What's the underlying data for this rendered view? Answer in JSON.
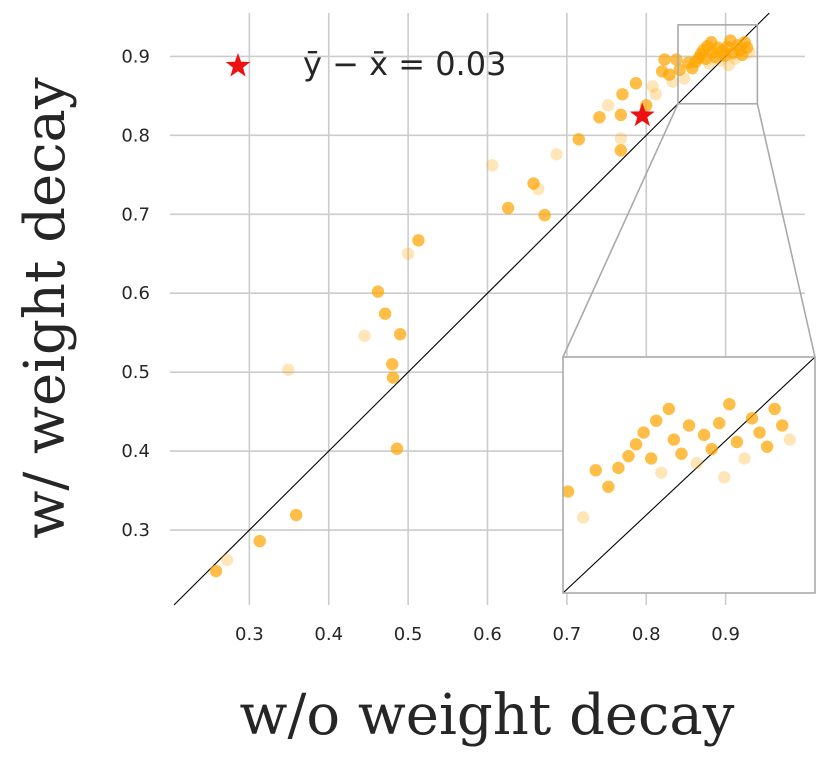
{
  "chart_data": {
    "type": "scatter",
    "xlabel": "w/o weight decay",
    "ylabel": "w/ weight decay",
    "xlim": [
      0.2,
      1.0
    ],
    "ylim": [
      0.205,
      0.955
    ],
    "xticks": [
      "0.3",
      "0.4",
      "0.5",
      "0.6",
      "0.7",
      "0.8",
      "0.9"
    ],
    "yticks": [
      "0.3",
      "0.4",
      "0.5",
      "0.6",
      "0.7",
      "0.8",
      "0.9"
    ],
    "grid": true,
    "point_color": "#ffa500",
    "marker_color": "#ee1111",
    "annotation": "ȳ − x̄ = 0.03",
    "mean_point": {
      "x": 0.795,
      "y": 0.825
    },
    "points": [
      {
        "x": 0.258,
        "y": 0.248,
        "strong": true
      },
      {
        "x": 0.272,
        "y": 0.262,
        "strong": false
      },
      {
        "x": 0.313,
        "y": 0.286,
        "strong": true
      },
      {
        "x": 0.349,
        "y": 0.503,
        "strong": false
      },
      {
        "x": 0.359,
        "y": 0.319,
        "strong": true
      },
      {
        "x": 0.445,
        "y": 0.546,
        "strong": false
      },
      {
        "x": 0.462,
        "y": 0.602,
        "strong": true
      },
      {
        "x": 0.471,
        "y": 0.574,
        "strong": true
      },
      {
        "x": 0.48,
        "y": 0.51,
        "strong": true
      },
      {
        "x": 0.481,
        "y": 0.493,
        "strong": true
      },
      {
        "x": 0.486,
        "y": 0.403,
        "strong": true
      },
      {
        "x": 0.49,
        "y": 0.548,
        "strong": true
      },
      {
        "x": 0.5,
        "y": 0.65,
        "strong": false
      },
      {
        "x": 0.513,
        "y": 0.667,
        "strong": true
      },
      {
        "x": 0.606,
        "y": 0.762,
        "strong": false
      },
      {
        "x": 0.626,
        "y": 0.708,
        "strong": true
      },
      {
        "x": 0.658,
        "y": 0.739,
        "strong": true
      },
      {
        "x": 0.664,
        "y": 0.732,
        "strong": false
      },
      {
        "x": 0.672,
        "y": 0.699,
        "strong": true
      },
      {
        "x": 0.687,
        "y": 0.776,
        "strong": false
      },
      {
        "x": 0.715,
        "y": 0.795,
        "strong": true
      },
      {
        "x": 0.741,
        "y": 0.823,
        "strong": true
      },
      {
        "x": 0.752,
        "y": 0.838,
        "strong": false
      },
      {
        "x": 0.768,
        "y": 0.781,
        "strong": true
      },
      {
        "x": 0.768,
        "y": 0.796,
        "strong": false
      },
      {
        "x": 0.768,
        "y": 0.826,
        "strong": true
      },
      {
        "x": 0.77,
        "y": 0.852,
        "strong": true
      },
      {
        "x": 0.787,
        "y": 0.866,
        "strong": true
      },
      {
        "x": 0.8,
        "y": 0.838,
        "strong": true
      },
      {
        "x": 0.808,
        "y": 0.862,
        "strong": false
      },
      {
        "x": 0.812,
        "y": 0.852,
        "strong": false
      },
      {
        "x": 0.82,
        "y": 0.881,
        "strong": true
      },
      {
        "x": 0.823,
        "y": 0.896,
        "strong": true
      },
      {
        "x": 0.829,
        "y": 0.877,
        "strong": true
      },
      {
        "x": 0.833,
        "y": 0.868,
        "strong": false
      },
      {
        "x": 0.838,
        "y": 0.896,
        "strong": true
      },
      {
        "x": 0.842,
        "y": 0.883,
        "strong": true
      },
      {
        "x": 0.848,
        "y": 0.872,
        "strong": false
      },
      {
        "x": 0.853,
        "y": 0.892,
        "strong": true
      },
      {
        "x": 0.858,
        "y": 0.885,
        "strong": true
      },
      {
        "x": 0.862,
        "y": 0.893,
        "strong": true
      },
      {
        "x": 0.866,
        "y": 0.898,
        "strong": true
      },
      {
        "x": 0.869,
        "y": 0.903,
        "strong": true
      },
      {
        "x": 0.872,
        "y": 0.908,
        "strong": true
      },
      {
        "x": 0.875,
        "y": 0.897,
        "strong": true
      },
      {
        "x": 0.877,
        "y": 0.913,
        "strong": true
      },
      {
        "x": 0.879,
        "y": 0.891,
        "strong": false
      },
      {
        "x": 0.882,
        "y": 0.918,
        "strong": true
      },
      {
        "x": 0.884,
        "y": 0.905,
        "strong": true
      },
      {
        "x": 0.887,
        "y": 0.899,
        "strong": true
      },
      {
        "x": 0.89,
        "y": 0.911,
        "strong": true
      },
      {
        "x": 0.893,
        "y": 0.895,
        "strong": false
      },
      {
        "x": 0.896,
        "y": 0.907,
        "strong": true
      },
      {
        "x": 0.899,
        "y": 0.901,
        "strong": true
      },
      {
        "x": 0.902,
        "y": 0.912,
        "strong": true
      },
      {
        "x": 0.904,
        "y": 0.889,
        "strong": false
      },
      {
        "x": 0.906,
        "y": 0.92,
        "strong": true
      },
      {
        "x": 0.909,
        "y": 0.904,
        "strong": true
      },
      {
        "x": 0.912,
        "y": 0.897,
        "strong": false
      },
      {
        "x": 0.915,
        "y": 0.914,
        "strong": true
      },
      {
        "x": 0.918,
        "y": 0.908,
        "strong": true
      },
      {
        "x": 0.921,
        "y": 0.902,
        "strong": true
      },
      {
        "x": 0.924,
        "y": 0.918,
        "strong": true
      },
      {
        "x": 0.927,
        "y": 0.911,
        "strong": true
      },
      {
        "x": 0.93,
        "y": 0.905,
        "strong": false
      }
    ]
  }
}
